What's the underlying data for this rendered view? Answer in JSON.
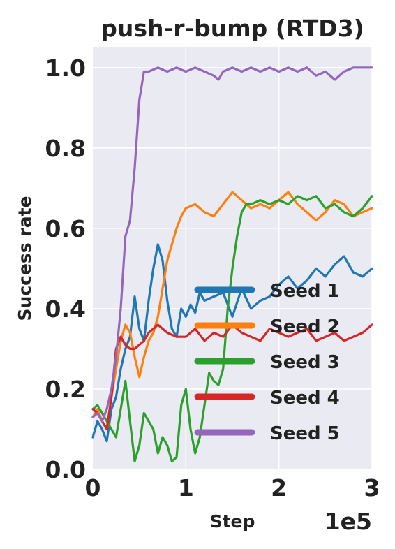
{
  "chart_data": {
    "type": "line",
    "title": "push-r-bump (RTD3)",
    "xlabel": "Step",
    "ylabel": "Success rate",
    "x_offset_label": "1e5",
    "xlim": [
      0,
      3
    ],
    "ylim": [
      0,
      1.05
    ],
    "xticks": [
      0,
      1,
      2,
      3
    ],
    "xtick_labels": [
      "0",
      "1",
      "2",
      "3"
    ],
    "yticks": [
      0.0,
      0.2,
      0.4,
      0.6,
      0.8,
      1.0
    ],
    "ytick_labels": [
      "0.0",
      "0.2",
      "0.4",
      "0.6",
      "0.8",
      "1.0"
    ],
    "grid": true,
    "background": "#eaeaf2",
    "legend_position": "lower right",
    "series": [
      {
        "name": "Seed 1",
        "color": "#1f77b4",
        "x": [
          0,
          0.05,
          0.1,
          0.15,
          0.2,
          0.25,
          0.3,
          0.35,
          0.4,
          0.45,
          0.5,
          0.55,
          0.6,
          0.65,
          0.7,
          0.75,
          0.8,
          0.85,
          0.9,
          0.95,
          1.0,
          1.05,
          1.1,
          1.15,
          1.2,
          1.3,
          1.4,
          1.5,
          1.6,
          1.7,
          1.8,
          1.9,
          2.0,
          2.1,
          2.2,
          2.3,
          2.4,
          2.5,
          2.6,
          2.7,
          2.8,
          2.9,
          3.0
        ],
        "y": [
          0.08,
          0.12,
          0.1,
          0.07,
          0.15,
          0.18,
          0.25,
          0.3,
          0.33,
          0.43,
          0.35,
          0.32,
          0.42,
          0.5,
          0.56,
          0.52,
          0.42,
          0.35,
          0.33,
          0.4,
          0.38,
          0.41,
          0.39,
          0.44,
          0.42,
          0.43,
          0.44,
          0.38,
          0.45,
          0.4,
          0.42,
          0.43,
          0.46,
          0.48,
          0.45,
          0.47,
          0.5,
          0.48,
          0.51,
          0.53,
          0.49,
          0.48,
          0.5
        ]
      },
      {
        "name": "Seed 2",
        "color": "#ff7f0e",
        "x": [
          0,
          0.05,
          0.1,
          0.15,
          0.2,
          0.25,
          0.3,
          0.35,
          0.4,
          0.45,
          0.5,
          0.55,
          0.6,
          0.65,
          0.7,
          0.75,
          0.8,
          0.85,
          0.9,
          0.95,
          1.0,
          1.1,
          1.2,
          1.3,
          1.4,
          1.5,
          1.6,
          1.7,
          1.8,
          1.9,
          2.0,
          2.1,
          2.2,
          2.3,
          2.4,
          2.5,
          2.6,
          2.7,
          2.8,
          2.9,
          3.0
        ],
        "y": [
          0.13,
          0.15,
          0.12,
          0.1,
          0.18,
          0.25,
          0.32,
          0.36,
          0.34,
          0.28,
          0.23,
          0.28,
          0.32,
          0.34,
          0.38,
          0.45,
          0.52,
          0.56,
          0.6,
          0.63,
          0.65,
          0.66,
          0.64,
          0.63,
          0.66,
          0.69,
          0.67,
          0.65,
          0.66,
          0.65,
          0.67,
          0.69,
          0.66,
          0.64,
          0.62,
          0.64,
          0.67,
          0.66,
          0.63,
          0.64,
          0.65
        ]
      },
      {
        "name": "Seed 3",
        "color": "#2ca02c",
        "x": [
          0,
          0.05,
          0.1,
          0.15,
          0.2,
          0.25,
          0.3,
          0.35,
          0.4,
          0.45,
          0.5,
          0.55,
          0.6,
          0.65,
          0.7,
          0.75,
          0.8,
          0.85,
          0.9,
          0.95,
          1.0,
          1.05,
          1.1,
          1.15,
          1.2,
          1.25,
          1.3,
          1.35,
          1.4,
          1.45,
          1.5,
          1.55,
          1.6,
          1.65,
          1.7,
          1.8,
          1.9,
          2.0,
          2.1,
          2.2,
          2.3,
          2.4,
          2.5,
          2.6,
          2.7,
          2.8,
          2.9,
          3.0
        ],
        "y": [
          0.15,
          0.16,
          0.14,
          0.12,
          0.1,
          0.08,
          0.15,
          0.22,
          0.12,
          0.02,
          0.06,
          0.14,
          0.12,
          0.1,
          0.04,
          0.08,
          0.06,
          0.02,
          0.03,
          0.16,
          0.2,
          0.1,
          0.04,
          0.08,
          0.16,
          0.24,
          0.22,
          0.21,
          0.25,
          0.4,
          0.5,
          0.58,
          0.64,
          0.66,
          0.66,
          0.67,
          0.66,
          0.67,
          0.66,
          0.68,
          0.67,
          0.68,
          0.65,
          0.66,
          0.64,
          0.63,
          0.65,
          0.68
        ]
      },
      {
        "name": "Seed 4",
        "color": "#d62728",
        "x": [
          0,
          0.05,
          0.1,
          0.15,
          0.2,
          0.25,
          0.3,
          0.35,
          0.4,
          0.45,
          0.5,
          0.55,
          0.6,
          0.65,
          0.7,
          0.75,
          0.8,
          0.9,
          1.0,
          1.1,
          1.2,
          1.3,
          1.4,
          1.5,
          1.6,
          1.7,
          1.8,
          1.9,
          2.0,
          2.1,
          2.2,
          2.3,
          2.4,
          2.5,
          2.6,
          2.7,
          2.8,
          2.9,
          3.0
        ],
        "y": [
          0.15,
          0.14,
          0.12,
          0.1,
          0.18,
          0.3,
          0.33,
          0.31,
          0.3,
          0.3,
          0.31,
          0.32,
          0.34,
          0.35,
          0.36,
          0.35,
          0.34,
          0.33,
          0.33,
          0.35,
          0.32,
          0.34,
          0.33,
          0.36,
          0.34,
          0.33,
          0.32,
          0.35,
          0.34,
          0.33,
          0.34,
          0.35,
          0.32,
          0.33,
          0.34,
          0.32,
          0.33,
          0.34,
          0.36
        ]
      },
      {
        "name": "Seed 5",
        "color": "#9467bd",
        "x": [
          0,
          0.05,
          0.1,
          0.15,
          0.2,
          0.25,
          0.3,
          0.35,
          0.4,
          0.45,
          0.5,
          0.55,
          0.6,
          0.7,
          0.8,
          0.9,
          1.0,
          1.1,
          1.2,
          1.3,
          1.35,
          1.4,
          1.5,
          1.6,
          1.7,
          1.8,
          1.9,
          2.0,
          2.1,
          2.2,
          2.3,
          2.4,
          2.5,
          2.6,
          2.65,
          2.7,
          2.8,
          2.9,
          3.0
        ],
        "y": [
          0.13,
          0.14,
          0.12,
          0.15,
          0.2,
          0.28,
          0.4,
          0.58,
          0.62,
          0.75,
          0.92,
          0.99,
          0.99,
          1.0,
          0.99,
          1.0,
          0.99,
          1.0,
          0.99,
          0.98,
          0.97,
          0.99,
          1.0,
          0.99,
          1.0,
          0.99,
          1.0,
          0.99,
          1.0,
          0.99,
          1.0,
          0.98,
          0.99,
          0.97,
          0.98,
          0.99,
          1.0,
          1.0,
          1.0
        ]
      }
    ]
  }
}
